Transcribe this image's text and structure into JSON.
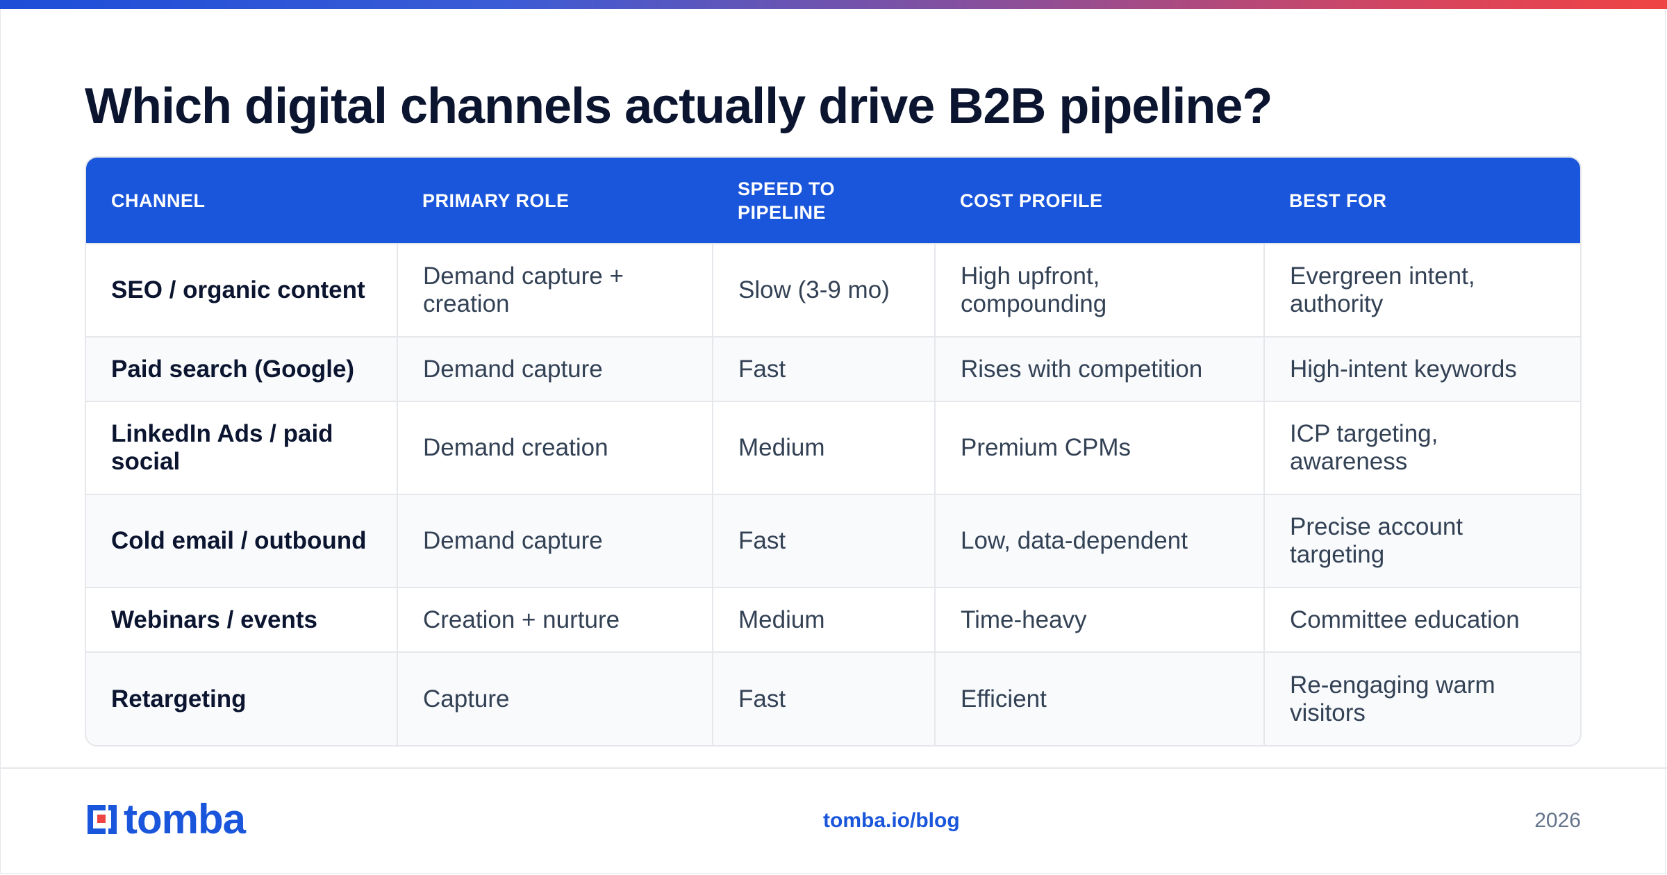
{
  "title": "Which digital channels actually drive B2B pipeline?",
  "table": {
    "headers": [
      "CHANNEL",
      "PRIMARY ROLE",
      "SPEED TO PIPELINE",
      "COST PROFILE",
      "BEST FOR"
    ],
    "rows": [
      [
        "SEO / organic content",
        "Demand capture + creation",
        "Slow (3-9 mo)",
        "High upfront, compounding",
        "Evergreen intent, authority"
      ],
      [
        "Paid search (Google)",
        "Demand capture",
        "Fast",
        "Rises with competition",
        "High-intent keywords"
      ],
      [
        "LinkedIn Ads / paid social",
        "Demand creation",
        "Medium",
        "Premium CPMs",
        "ICP targeting, awareness"
      ],
      [
        "Cold email / outbound",
        "Demand capture",
        "Fast",
        "Low, data-dependent",
        "Precise account targeting"
      ],
      [
        "Webinars / events",
        "Creation + nurture",
        "Medium",
        "Time-heavy",
        "Committee education"
      ],
      [
        "Retargeting",
        "Capture",
        "Fast",
        "Efficient",
        "Re-engaging warm visitors"
      ]
    ]
  },
  "footer": {
    "logo_text": "tomba",
    "link": "tomba.io/blog",
    "year": "2026"
  },
  "colors": {
    "brand_blue": "#1a56db",
    "title_dark": "#0b1530",
    "body_text": "#334155",
    "row_alt": "#f8fafc",
    "logo_red": "#ef4444"
  }
}
